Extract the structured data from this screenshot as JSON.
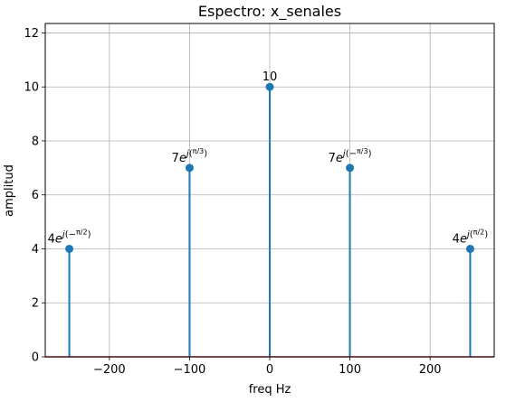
{
  "chart_data": {
    "type": "stem",
    "title": "Espectro: x_senales",
    "xlabel": "freq Hz",
    "ylabel": "amplitud",
    "xlim": [
      -280,
      280
    ],
    "ylim": [
      0,
      12.35
    ],
    "xticks": [
      -200,
      -100,
      0,
      100,
      200
    ],
    "xtick_labels": [
      "−200",
      "−100",
      "0",
      "100",
      "200"
    ],
    "yticks": [
      0,
      2,
      4,
      6,
      8,
      10,
      12
    ],
    "ytick_labels": [
      "0",
      "2",
      "4",
      "6",
      "8",
      "10",
      "12"
    ],
    "grid": true,
    "colors": {
      "stem": "#1f77b4",
      "baseline": "#d62728",
      "grid": "#b0b0b0"
    },
    "points": [
      {
        "x": -250,
        "y": 4,
        "label": {
          "coef": "4",
          "sign": "−",
          "angle": "π/2"
        }
      },
      {
        "x": -100,
        "y": 7,
        "label": {
          "coef": "7",
          "sign": "",
          "angle": "π/3"
        }
      },
      {
        "x": 0,
        "y": 10,
        "label": {
          "coef": "10"
        }
      },
      {
        "x": 100,
        "y": 7,
        "label": {
          "coef": "7",
          "sign": "−",
          "angle": "π/3"
        }
      },
      {
        "x": 250,
        "y": 4,
        "label": {
          "coef": "4",
          "sign": "",
          "angle": "π/2"
        }
      }
    ]
  }
}
